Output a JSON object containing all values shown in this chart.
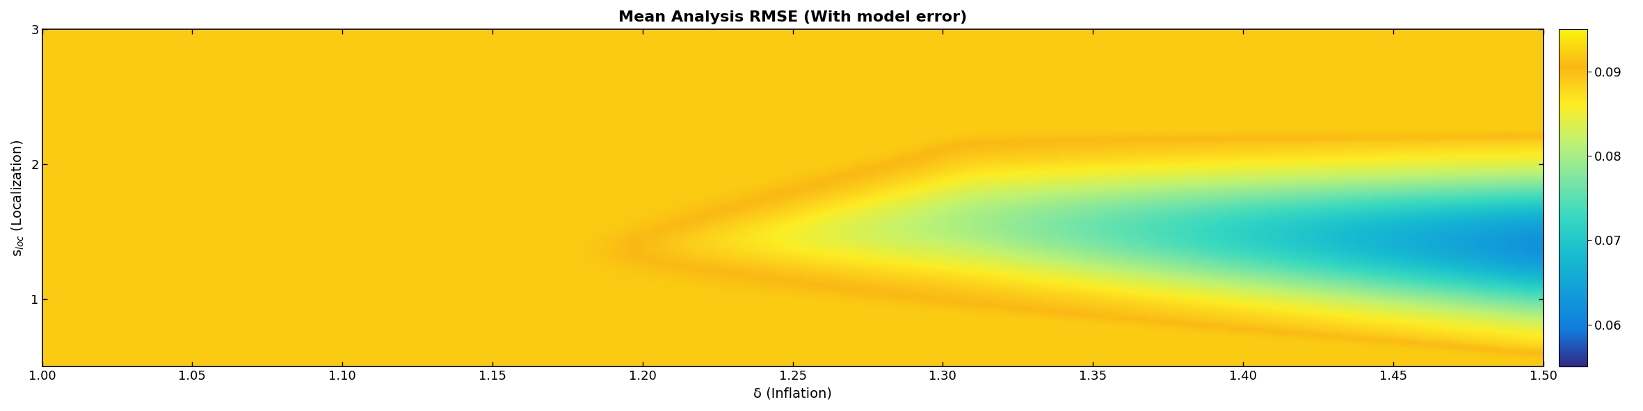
{
  "title": "Mean Analysis RMSE (With model error)",
  "xlabel": "δ (Inflation)",
  "ylabel": "s$_{loc}$ (Localization)",
  "xlim": [
    1.0,
    1.5
  ],
  "ylim": [
    0.5,
    3.0
  ],
  "vmin": 0.055,
  "vmax": 0.095,
  "colorbar_ticks": [
    0.06,
    0.07,
    0.08,
    0.09
  ],
  "colorbar_labels": [
    "0.06",
    "0.07",
    "0.08",
    "0.09"
  ],
  "xticks": [
    1.0,
    1.05,
    1.1,
    1.15,
    1.2,
    1.25,
    1.3,
    1.35,
    1.4,
    1.45,
    1.5
  ],
  "yticks": [
    1.0,
    2.0,
    3.0
  ],
  "nx": 200,
  "ny": 100,
  "delta_min": 1.0,
  "delta_max": 1.5,
  "sloc_min": 0.5,
  "sloc_max": 3.0,
  "background_color": "#ffffff",
  "title_fontsize": 16,
  "label_fontsize": 14,
  "tick_fontsize": 13,
  "colorbar_fontsize": 13
}
